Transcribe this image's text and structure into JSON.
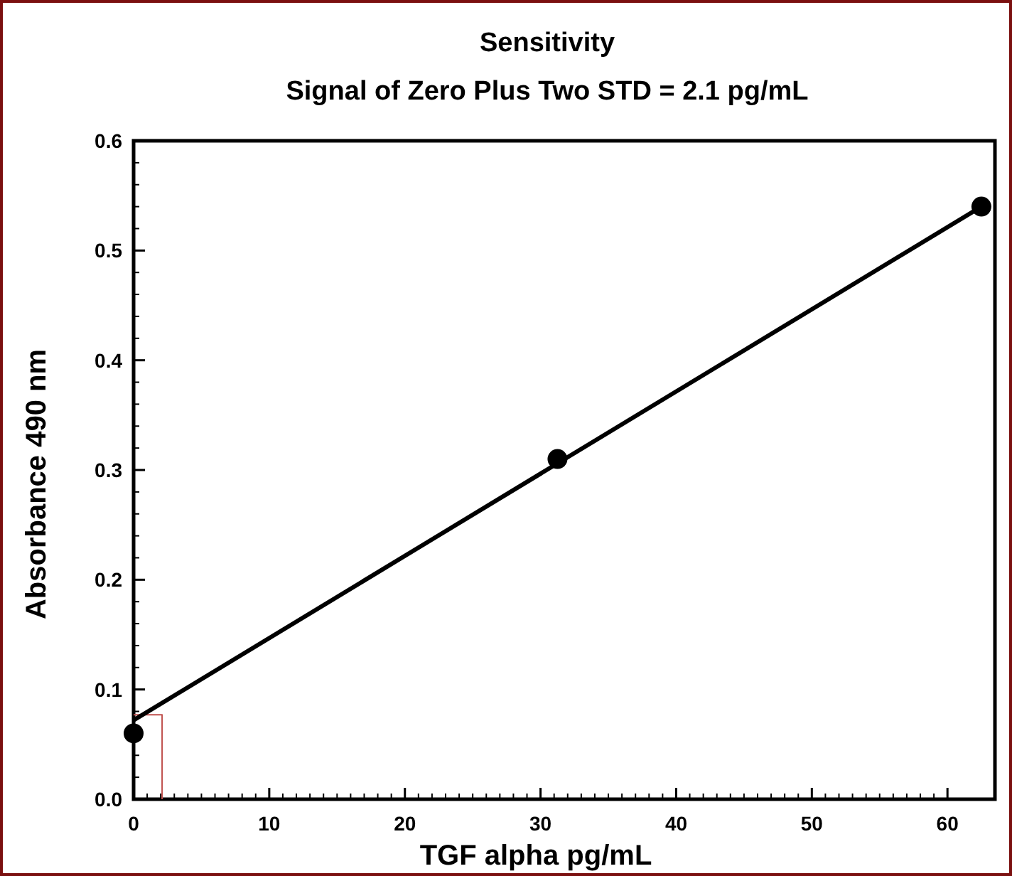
{
  "chart_data": {
    "type": "scatter",
    "title": "Sensitivity",
    "subtitle": "Signal of Zero Plus Two STD = 2.1 pg/mL",
    "xlabel": "TGF alpha pg/mL",
    "ylabel": "Absorbance 490 nm",
    "xlim": [
      0,
      63.5
    ],
    "xticks": [
      0,
      10,
      20,
      30,
      40,
      50,
      60
    ],
    "ylim": [
      0,
      0.6
    ],
    "yticks": [
      {
        "value": 0,
        "label": "0.0"
      },
      0.1,
      0.2,
      0.3,
      0.4,
      0.5,
      0.6
    ],
    "grid": false,
    "marker": "circle",
    "series": [
      {
        "color": "#000000",
        "x": [
          0,
          31.25,
          62.5
        ],
        "values": [
          0.06,
          0.31,
          0.54
        ]
      },
      {
        "type": "line",
        "color": "#000000",
        "marker": "none",
        "x": [
          0,
          62.5
        ],
        "values": [
          0.072,
          0.54
        ]
      },
      {
        "type": "line",
        "color": "#c0504d",
        "marker": "none",
        "x": [
          0,
          2.1,
          2.1
        ],
        "values": [
          0.077,
          0.077,
          0
        ]
      }
    ]
  }
}
